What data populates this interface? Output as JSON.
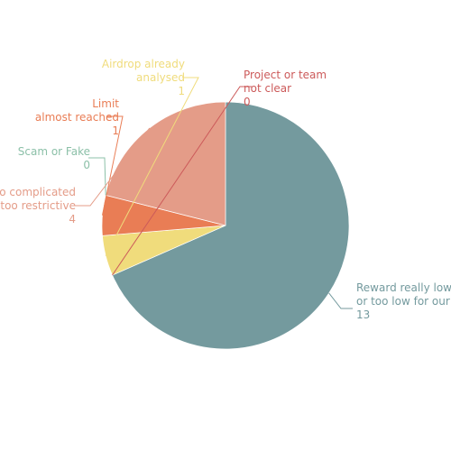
{
  "chart_data": {
    "type": "pie",
    "title": "",
    "series": [
      {
        "label": [
          "Reward really low",
          "or too low for our"
        ],
        "value": 13,
        "color": "#749a9e"
      },
      {
        "label": [
          "Project or team",
          "not clear"
        ],
        "value": 0,
        "color": "#cc5a5a"
      },
      {
        "label": [
          "Airdrop already",
          "analysed"
        ],
        "value": 1,
        "color": "#f0dc7c"
      },
      {
        "label": [
          "Limit",
          "almost reached"
        ],
        "value": 1,
        "color": "#e97d55"
      },
      {
        "label": [
          "Scam or Fake"
        ],
        "value": 0,
        "color": "#8cc0a8"
      },
      {
        "label": [
          "Too complicated",
          "or too restrictive"
        ],
        "value": 4,
        "color": "#e49c88"
      }
    ]
  }
}
